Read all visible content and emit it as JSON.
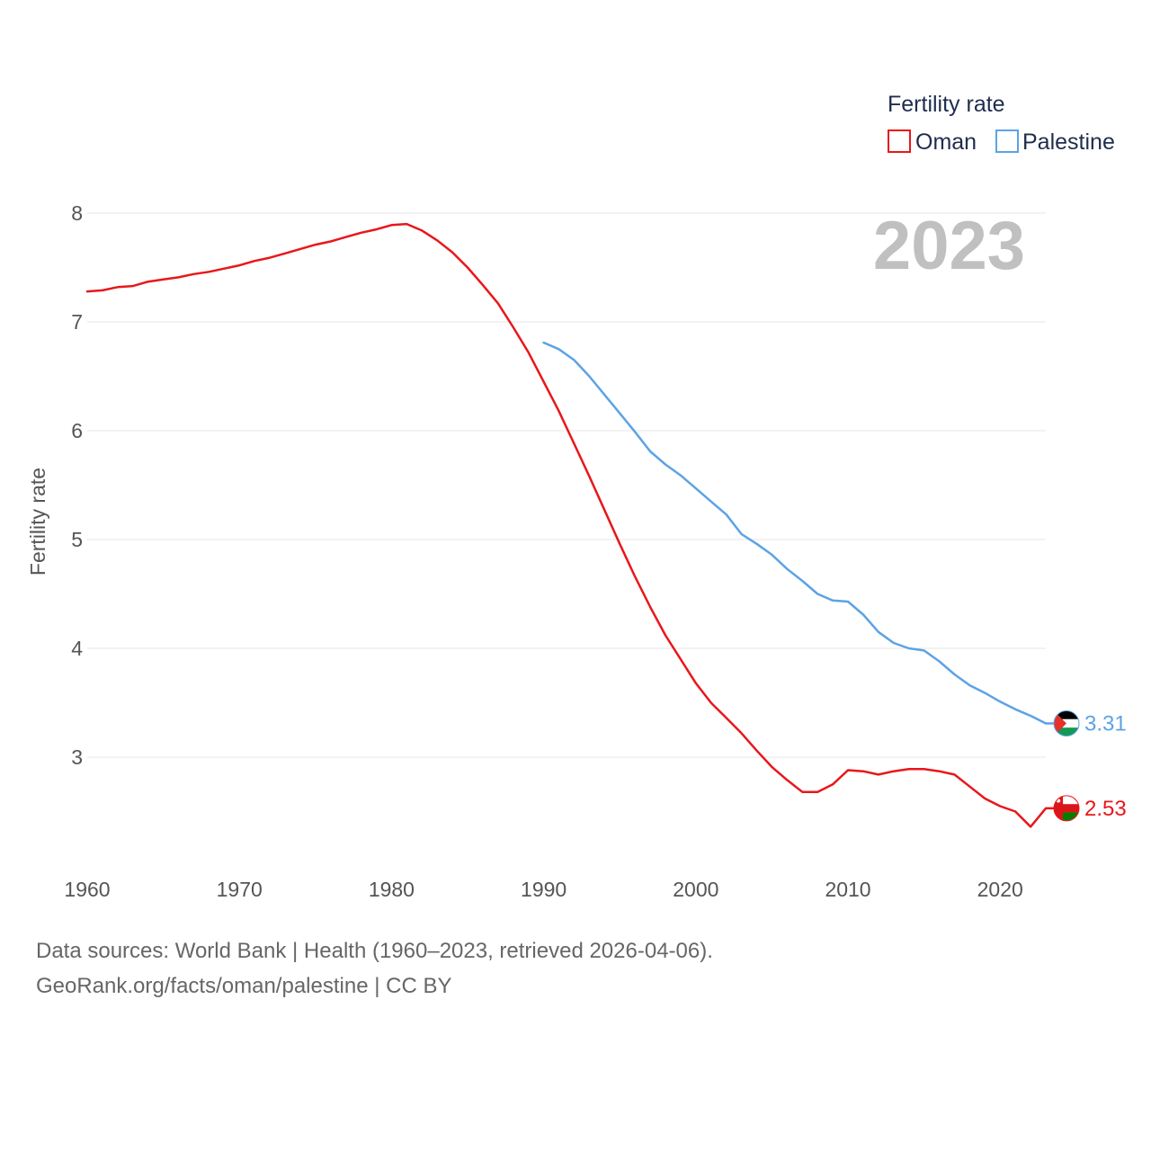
{
  "chart_data": {
    "type": "line",
    "title": "2023",
    "xlabel": "",
    "ylabel": "Fertility rate",
    "xlim": [
      1960,
      2023
    ],
    "ylim": [
      2.0,
      8.0
    ],
    "x_ticks": [
      1960,
      1970,
      1980,
      1990,
      2000,
      2010,
      2020
    ],
    "y_ticks": [
      3,
      4,
      5,
      6,
      7,
      8
    ],
    "grid": true,
    "legend": {
      "title": "Fertility rate",
      "position": "top-right"
    },
    "series": [
      {
        "name": "Oman",
        "color": "#e8171b",
        "end_label": "2.53",
        "flag_icon": "oman-flag-icon",
        "x": [
          1960,
          1961,
          1962,
          1963,
          1964,
          1965,
          1966,
          1967,
          1968,
          1969,
          1970,
          1971,
          1972,
          1973,
          1974,
          1975,
          1976,
          1977,
          1978,
          1979,
          1980,
          1981,
          1982,
          1983,
          1984,
          1985,
          1986,
          1987,
          1988,
          1989,
          1990,
          1991,
          1992,
          1993,
          1994,
          1995,
          1996,
          1997,
          1998,
          1999,
          2000,
          2001,
          2002,
          2003,
          2004,
          2005,
          2006,
          2007,
          2008,
          2009,
          2010,
          2011,
          2012,
          2013,
          2014,
          2015,
          2016,
          2017,
          2018,
          2019,
          2020,
          2021,
          2022,
          2023
        ],
        "values": [
          7.28,
          7.29,
          7.32,
          7.33,
          7.37,
          7.39,
          7.41,
          7.44,
          7.46,
          7.49,
          7.52,
          7.56,
          7.59,
          7.63,
          7.67,
          7.71,
          7.74,
          7.78,
          7.82,
          7.85,
          7.89,
          7.9,
          7.84,
          7.75,
          7.64,
          7.5,
          7.34,
          7.17,
          6.95,
          6.72,
          6.45,
          6.18,
          5.88,
          5.58,
          5.27,
          4.96,
          4.66,
          4.38,
          4.12,
          3.9,
          3.68,
          3.5,
          3.36,
          3.22,
          3.06,
          2.91,
          2.79,
          2.68,
          2.68,
          2.75,
          2.88,
          2.87,
          2.84,
          2.87,
          2.89,
          2.89,
          2.87,
          2.84,
          2.73,
          2.62,
          2.55,
          2.5,
          2.36,
          2.53
        ]
      },
      {
        "name": "Palestine",
        "color": "#5ca3e5",
        "end_label": "3.31",
        "flag_icon": "palestine-flag-icon",
        "x": [
          1990,
          1991,
          1992,
          1993,
          1994,
          1995,
          1996,
          1997,
          1998,
          1999,
          2000,
          2001,
          2002,
          2003,
          2004,
          2005,
          2006,
          2007,
          2008,
          2009,
          2010,
          2011,
          2012,
          2013,
          2014,
          2015,
          2016,
          2017,
          2018,
          2019,
          2020,
          2021,
          2022,
          2023
        ],
        "values": [
          6.81,
          6.75,
          6.65,
          6.5,
          6.33,
          6.16,
          5.99,
          5.81,
          5.69,
          5.59,
          5.47,
          5.35,
          5.23,
          5.05,
          4.96,
          4.86,
          4.73,
          4.62,
          4.5,
          4.44,
          4.43,
          4.31,
          4.15,
          4.05,
          4.0,
          3.98,
          3.88,
          3.76,
          3.66,
          3.59,
          3.51,
          3.44,
          3.38,
          3.31
        ]
      }
    ]
  },
  "footer": {
    "line1": "Data sources: World Bank | Health (1960–2023, retrieved 2026-04-06).",
    "line2": "GeoRank.org/facts/oman/palestine | CC BY"
  }
}
